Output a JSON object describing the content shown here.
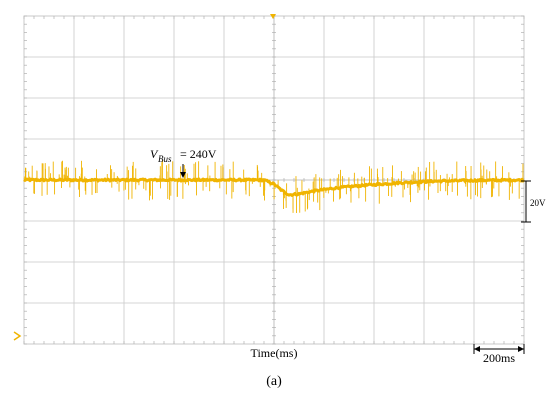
{
  "chart_data": {
    "type": "line",
    "grid": true,
    "trace_color": "#f0b400",
    "grid_color": "#c8c8c8",
    "xlabel": "Time(ms)",
    "time_scale_label": "200ms",
    "volt_scale_label": "20V",
    "annotation": {
      "symbol": "V",
      "subscript": "Bus",
      "value_text": "= 240V"
    },
    "divisions": {
      "x": 10,
      "y": 8
    },
    "series": [
      {
        "values_div": [
          [
            0.0,
            0.0
          ],
          [
            4.8,
            0.0
          ],
          [
            5.0,
            -0.1
          ],
          [
            5.15,
            -0.25
          ],
          [
            5.3,
            -0.36
          ],
          [
            5.5,
            -0.34
          ],
          [
            5.8,
            -0.27
          ],
          [
            6.2,
            -0.2
          ],
          [
            6.8,
            -0.13
          ],
          [
            7.5,
            -0.07
          ],
          [
            8.2,
            -0.03
          ],
          [
            9.0,
            -0.01
          ],
          [
            10.0,
            0.0
          ]
        ]
      }
    ]
  },
  "caption": "(a)"
}
